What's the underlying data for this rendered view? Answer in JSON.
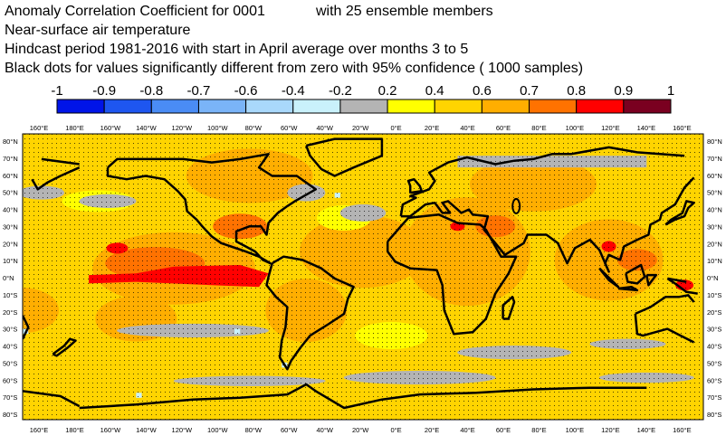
{
  "header": {
    "line1_a": "Anomaly Correlation Coefficient for 0001",
    "line1_b": "with 25 ensemble members",
    "line2": "Near-surface air temperature",
    "line3": "Hindcast period 1981-2016 with start in April average over months  3 to  5",
    "line4": "Black dots for values significantly different from zero with 95% confidence ( 1000 samples)"
  },
  "colorbar": {
    "labels": [
      "-1",
      "-0.9",
      "-0.8",
      "-0.7",
      "-0.6",
      "-0.4",
      "-0.2",
      "0.2",
      "0.4",
      "0.6",
      "0.7",
      "0.8",
      "0.9",
      "1"
    ],
    "colors": [
      "#0014e8",
      "#1e56f0",
      "#4a8cf5",
      "#7ab4f8",
      "#a9d8fb",
      "#c9f1fb",
      "#b4b4b4",
      "#ffff00",
      "#ffd400",
      "#ffae00",
      "#ff7200",
      "#ff0000",
      "#7a0020"
    ]
  },
  "map": {
    "top_lon_labels": [
      "160°E",
      "180°E",
      "160°W",
      "140°W",
      "120°W",
      "100°W",
      "80°W",
      "60°W",
      "40°W",
      "20°W",
      "0°E",
      "20°E",
      "40°E",
      "60°E",
      "80°E",
      "100°E",
      "120°E",
      "140°E",
      "160°E"
    ],
    "bottom_lon_labels": [
      "160°E",
      "180°E",
      "160°W",
      "140°W",
      "120°W",
      "100°W",
      "80°W",
      "60°W",
      "40°W",
      "20°W",
      "0°E",
      "20°E",
      "40°E",
      "60°E",
      "80°E",
      "100°E",
      "120°E",
      "140°E",
      "160°E"
    ],
    "lat_labels": [
      "80°N",
      "70°N",
      "60°N",
      "50°N",
      "40°N",
      "30°N",
      "20°N",
      "10°N",
      "0°N",
      "10°S",
      "20°S",
      "30°S",
      "40°S",
      "50°S",
      "60°S",
      "70°S",
      "80°S"
    ],
    "ocean_color": "#ffd400",
    "coast_color": "#000000"
  }
}
